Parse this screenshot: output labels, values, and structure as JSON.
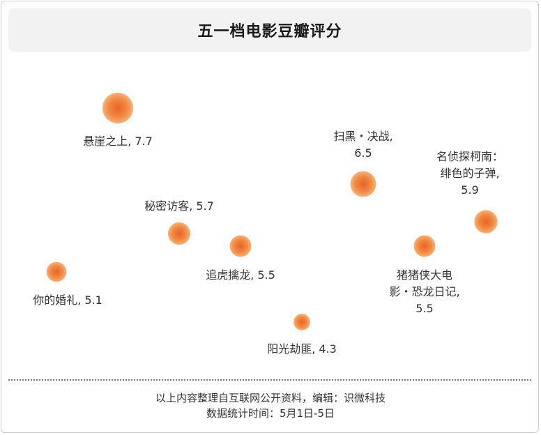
{
  "title": "五一档电影豆瓣评分",
  "footer": {
    "line1": "以上内容整理自互联网公开资料，编辑：识微科技",
    "line2": "数据统计时间：5月1日-5日"
  },
  "colors": {
    "bubble": "#f08a40",
    "bubble_center": "#e8642a",
    "bubble_edge": "#f7b27c"
  },
  "chart_data": {
    "type": "scatter",
    "title": "五一档电影豆瓣评分",
    "xlabel": "",
    "ylabel": "",
    "ylim": [
      4,
      8
    ],
    "grid": false,
    "points": [
      {
        "name": "你的婚礼",
        "value": 5.1,
        "label_lines": [
          "你的婚礼, 5.1"
        ]
      },
      {
        "name": "悬崖之上",
        "value": 7.7,
        "label_lines": [
          "悬崖之上, 7.7"
        ]
      },
      {
        "name": "秘密访客",
        "value": 5.7,
        "label_lines": [
          "秘密访客, 5.7"
        ]
      },
      {
        "name": "追虎擒龙",
        "value": 5.5,
        "label_lines": [
          "追虎擒龙, 5.5"
        ]
      },
      {
        "name": "阳光劫匪",
        "value": 4.3,
        "label_lines": [
          "阳光劫匪, 4.3"
        ]
      },
      {
        "name": "扫黑·决战",
        "value": 6.5,
        "label_lines": [
          "扫黑・决战,",
          "6.5"
        ]
      },
      {
        "name": "猪猪侠大电影·恐龙日记",
        "value": 5.5,
        "label_lines": [
          "猪猪侠大电",
          "影・恐龙日记,",
          "5.5"
        ]
      },
      {
        "name": "名侦探柯南：绯色的子弹",
        "value": 5.9,
        "label_lines": [
          "名侦探柯南：",
          "绯色的子弹,",
          "5.9"
        ]
      }
    ]
  }
}
